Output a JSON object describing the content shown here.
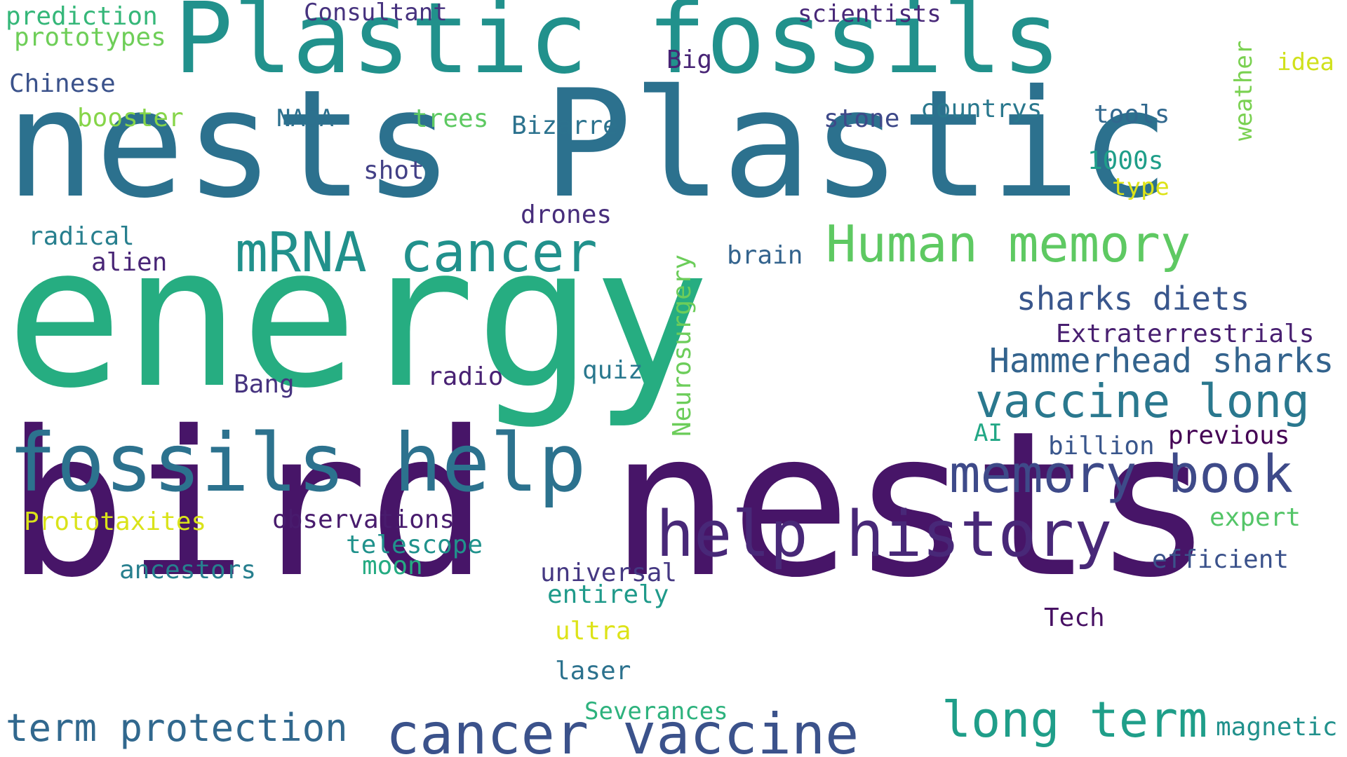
{
  "words": [
    {
      "text": "energy",
      "color": "#26ad81"
    },
    {
      "text": "bird nests",
      "color": "#471568"
    },
    {
      "text": "nests Plastic",
      "color": "#2c718e"
    },
    {
      "text": "Plastic fossils",
      "color": "#21918c"
    },
    {
      "text": "fossils help",
      "color": "#2c728e"
    },
    {
      "text": "cancer vaccine",
      "color": "#3b528b"
    },
    {
      "text": "help history",
      "color": "#482878"
    },
    {
      "text": "mRNA cancer",
      "color": "#21918c"
    },
    {
      "text": "Human memory",
      "color": "#5ec962"
    },
    {
      "text": "memory book",
      "color": "#3e4a89"
    },
    {
      "text": "vaccine long",
      "color": "#2a788e"
    },
    {
      "text": "long term",
      "color": "#1f9e89"
    },
    {
      "text": "term protection",
      "color": "#31688e"
    },
    {
      "text": "Hammerhead sharks",
      "color": "#33638d"
    },
    {
      "text": "sharks diets",
      "color": "#39568c"
    },
    {
      "text": "Extraterrestrials",
      "color": "#481f70"
    },
    {
      "text": "Neurosurgery",
      "color": "#6ccd5a"
    },
    {
      "text": "weather",
      "color": "#7ad151"
    },
    {
      "text": "prediction",
      "color": "#35b779"
    },
    {
      "text": "prototypes",
      "color": "#6ece58"
    },
    {
      "text": "Chinese",
      "color": "#3b528b"
    },
    {
      "text": "booster",
      "color": "#86d549"
    },
    {
      "text": "Consultant",
      "color": "#46327e"
    },
    {
      "text": "scientists",
      "color": "#482878"
    },
    {
      "text": "Big",
      "color": "#482475"
    },
    {
      "text": "idea",
      "color": "#d0e11c"
    },
    {
      "text": "NASA",
      "color": "#2d708e"
    },
    {
      "text": "trees",
      "color": "#5ec962"
    },
    {
      "text": "Bizarre",
      "color": "#2c728e"
    },
    {
      "text": "stone",
      "color": "#3e4989"
    },
    {
      "text": "countrys",
      "color": "#2a788e"
    },
    {
      "text": "tools",
      "color": "#31688e"
    },
    {
      "text": "shot",
      "color": "#424086"
    },
    {
      "text": "1000s",
      "color": "#1f9e89"
    },
    {
      "text": "type",
      "color": "#dde318"
    },
    {
      "text": "drones",
      "color": "#472d7b"
    },
    {
      "text": "radical",
      "color": "#277f8e"
    },
    {
      "text": "alien",
      "color": "#482576"
    },
    {
      "text": "brain",
      "color": "#33638d"
    },
    {
      "text": "quiz",
      "color": "#2a788e"
    },
    {
      "text": "radio",
      "color": "#482173"
    },
    {
      "text": "Bang",
      "color": "#46337f"
    },
    {
      "text": "AI",
      "color": "#22a785"
    },
    {
      "text": "billion",
      "color": "#39568c"
    },
    {
      "text": "previous",
      "color": "#440154"
    },
    {
      "text": "Prototaxites",
      "color": "#dae319"
    },
    {
      "text": "observations",
      "color": "#481b6d"
    },
    {
      "text": "telescope",
      "color": "#20928c"
    },
    {
      "text": "moon",
      "color": "#25ab82"
    },
    {
      "text": "ancestors",
      "color": "#277f8e"
    },
    {
      "text": "universal",
      "color": "#453882"
    },
    {
      "text": "entirely",
      "color": "#1f9a8a"
    },
    {
      "text": "expert",
      "color": "#54c568"
    },
    {
      "text": "efficient",
      "color": "#3b528b"
    },
    {
      "text": "ultra",
      "color": "#dde318"
    },
    {
      "text": "Tech",
      "color": "#471063"
    },
    {
      "text": "laser",
      "color": "#2c728e"
    },
    {
      "text": "Severances",
      "color": "#2db27d"
    },
    {
      "text": "magnetic",
      "color": "#21918c"
    }
  ]
}
